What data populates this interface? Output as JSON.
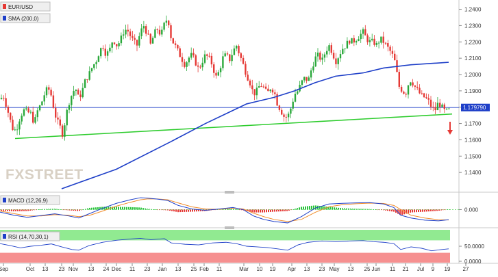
{
  "instrument": "EUR/USD",
  "watermark": "FXSTREET",
  "price_tag": "1.179790",
  "chart_data": [
    {
      "type": "candlestick",
      "pane": "price",
      "series": [
        {
          "name": "EUR/USD",
          "color": "#e53935"
        },
        {
          "name": "SMA (200,0)",
          "color": "#1e3fc8"
        }
      ],
      "ylim": [
        1.13,
        1.244
      ],
      "y_ticks": [
        "1.2400",
        "1.2300",
        "1.2200",
        "1.2100",
        "1.2000",
        "1.1900",
        "1.1800",
        "1.1700",
        "1.1600",
        "1.1500",
        "1.1400"
      ],
      "y_tick_values": [
        1.24,
        1.23,
        1.22,
        1.21,
        1.2,
        1.19,
        1.18,
        1.17,
        1.16,
        1.15,
        1.14
      ],
      "last_price": 1.17979,
      "price_anchors": [
        [
          0,
          1.185
        ],
        [
          5,
          1.187
        ],
        [
          10,
          1.18
        ],
        [
          15,
          1.172
        ],
        [
          20,
          1.165
        ],
        [
          25,
          1.168
        ],
        [
          30,
          1.175
        ],
        [
          35,
          1.178
        ],
        [
          40,
          1.177
        ],
        [
          45,
          1.176
        ],
        [
          50,
          1.17
        ],
        [
          55,
          1.178
        ],
        [
          60,
          1.182
        ],
        [
          65,
          1.188
        ],
        [
          70,
          1.192
        ],
        [
          75,
          1.187
        ],
        [
          80,
          1.176
        ],
        [
          85,
          1.17
        ],
        [
          90,
          1.166
        ],
        [
          92,
          1.162
        ],
        [
          95,
          1.172
        ],
        [
          100,
          1.182
        ],
        [
          105,
          1.188
        ],
        [
          110,
          1.192
        ],
        [
          115,
          1.185
        ],
        [
          120,
          1.19
        ],
        [
          125,
          1.197
        ],
        [
          130,
          1.2
        ],
        [
          135,
          1.205
        ],
        [
          140,
          1.208
        ],
        [
          145,
          1.214
        ],
        [
          150,
          1.218
        ],
        [
          155,
          1.212
        ],
        [
          160,
          1.215
        ],
        [
          165,
          1.222
        ],
        [
          170,
          1.218
        ],
        [
          175,
          1.22
        ],
        [
          180,
          1.226
        ],
        [
          185,
          1.228
        ],
        [
          190,
          1.224
        ],
        [
          195,
          1.22
        ],
        [
          200,
          1.218
        ],
        [
          205,
          1.226
        ],
        [
          210,
          1.23
        ],
        [
          215,
          1.225
        ],
        [
          220,
          1.218
        ],
        [
          225,
          1.225
        ],
        [
          230,
          1.228
        ],
        [
          235,
          1.224
        ],
        [
          240,
          1.231
        ],
        [
          245,
          1.235
        ],
        [
          250,
          1.222
        ],
        [
          255,
          1.218
        ],
        [
          260,
          1.214
        ],
        [
          265,
          1.21
        ],
        [
          270,
          1.206
        ],
        [
          275,
          1.21
        ],
        [
          280,
          1.212
        ],
        [
          285,
          1.208
        ],
        [
          290,
          1.203
        ],
        [
          295,
          1.208
        ],
        [
          300,
          1.212
        ],
        [
          305,
          1.21
        ],
        [
          310,
          1.206
        ],
        [
          315,
          1.198
        ],
        [
          320,
          1.202
        ],
        [
          325,
          1.21
        ],
        [
          330,
          1.212
        ],
        [
          335,
          1.209
        ],
        [
          340,
          1.214
        ],
        [
          345,
          1.218
        ],
        [
          350,
          1.212
        ],
        [
          355,
          1.206
        ],
        [
          360,
          1.2
        ],
        [
          365,
          1.195
        ],
        [
          370,
          1.188
        ],
        [
          375,
          1.19
        ],
        [
          380,
          1.194
        ],
        [
          385,
          1.192
        ],
        [
          390,
          1.188
        ],
        [
          395,
          1.192
        ],
        [
          400,
          1.19
        ],
        [
          405,
          1.182
        ],
        [
          410,
          1.178
        ],
        [
          415,
          1.174
        ],
        [
          420,
          1.174
        ],
        [
          425,
          1.18
        ],
        [
          430,
          1.188
        ],
        [
          435,
          1.19
        ],
        [
          440,
          1.195
        ],
        [
          445,
          1.198
        ],
        [
          450,
          1.196
        ],
        [
          455,
          1.204
        ],
        [
          460,
          1.21
        ],
        [
          465,
          1.212
        ],
        [
          470,
          1.208
        ],
        [
          475,
          1.214
        ],
        [
          480,
          1.218
        ],
        [
          485,
          1.214
        ],
        [
          490,
          1.208
        ],
        [
          495,
          1.212
        ],
        [
          500,
          1.216
        ],
        [
          505,
          1.218
        ],
        [
          510,
          1.221
        ],
        [
          515,
          1.22
        ],
        [
          520,
          1.222
        ],
        [
          525,
          1.224
        ],
        [
          530,
          1.226
        ],
        [
          535,
          1.222
        ],
        [
          540,
          1.22
        ],
        [
          545,
          1.22
        ],
        [
          550,
          1.218
        ],
        [
          555,
          1.222
        ],
        [
          560,
          1.22
        ],
        [
          565,
          1.217
        ],
        [
          570,
          1.214
        ],
        [
          575,
          1.21
        ],
        [
          578,
          1.205
        ],
        [
          582,
          1.193
        ],
        [
          588,
          1.19
        ],
        [
          592,
          1.188
        ],
        [
          596,
          1.194
        ],
        [
          600,
          1.197
        ],
        [
          605,
          1.193
        ],
        [
          610,
          1.19
        ],
        [
          615,
          1.187
        ],
        [
          620,
          1.186
        ],
        [
          625,
          1.184
        ],
        [
          630,
          1.18
        ],
        [
          635,
          1.178
        ],
        [
          640,
          1.183
        ],
        [
          645,
          1.18
        ],
        [
          650,
          1.177
        ],
        [
          655,
          1.178
        ]
      ],
      "sma_200": [
        [
          90,
          1.13
        ],
        [
          170,
          1.142
        ],
        [
          250,
          1.159
        ],
        [
          300,
          1.17
        ],
        [
          330,
          1.176
        ],
        [
          360,
          1.182
        ],
        [
          380,
          1.184
        ],
        [
          400,
          1.186
        ],
        [
          430,
          1.19
        ],
        [
          460,
          1.195
        ],
        [
          490,
          1.199
        ],
        [
          530,
          1.201
        ],
        [
          560,
          1.204
        ],
        [
          600,
          1.206
        ],
        [
          655,
          1.2075
        ]
      ],
      "trendline": [
        [
          22,
          1.1608
        ],
        [
          660,
          1.1758
        ]
      ],
      "down_arrow": true
    },
    {
      "type": "line",
      "pane": "macd",
      "series": [
        {
          "name": "MACD (12,26,9)",
          "color": "#1e3fc8"
        },
        {
          "name": "Signal",
          "color": "#f08c2a"
        },
        {
          "name": "Histogram",
          "color_up": "#29c33c",
          "color_down": "#e53935"
        }
      ],
      "ylim": [
        -0.011,
        0.01
      ],
      "y_ticks": [
        "0.000"
      ],
      "macd_points": [
        [
          0,
          -0.0018
        ],
        [
          20,
          -0.004
        ],
        [
          40,
          -0.0055
        ],
        [
          60,
          -0.0042
        ],
        [
          80,
          -0.003
        ],
        [
          100,
          -0.0045
        ],
        [
          115,
          -0.006
        ],
        [
          130,
          -0.003
        ],
        [
          150,
          0.001
        ],
        [
          170,
          0.0045
        ],
        [
          190,
          0.007
        ],
        [
          205,
          0.0085
        ],
        [
          215,
          0.0082
        ],
        [
          230,
          0.0075
        ],
        [
          245,
          0.0065
        ],
        [
          260,
          0.003
        ],
        [
          280,
          0.0005
        ],
        [
          300,
          -0.0005
        ],
        [
          320,
          0.0005
        ],
        [
          340,
          0.0015
        ],
        [
          355,
          0.0
        ],
        [
          370,
          -0.0045
        ],
        [
          385,
          -0.007
        ],
        [
          400,
          -0.0085
        ],
        [
          420,
          -0.0095
        ],
        [
          440,
          -0.005
        ],
        [
          460,
          0.001
        ],
        [
          480,
          0.004
        ],
        [
          500,
          0.0045
        ],
        [
          520,
          0.0048
        ],
        [
          540,
          0.005
        ],
        [
          560,
          0.004
        ],
        [
          575,
          0.0015
        ],
        [
          585,
          -0.004
        ],
        [
          600,
          -0.006
        ],
        [
          620,
          -0.0075
        ],
        [
          640,
          -0.008
        ],
        [
          655,
          -0.0072
        ]
      ],
      "signal_points": [
        [
          0,
          -0.001
        ],
        [
          20,
          -0.0028
        ],
        [
          40,
          -0.0045
        ],
        [
          60,
          -0.0045
        ],
        [
          80,
          -0.0036
        ],
        [
          100,
          -0.004
        ],
        [
          115,
          -0.005
        ],
        [
          130,
          -0.0042
        ],
        [
          150,
          -0.001
        ],
        [
          170,
          0.0025
        ],
        [
          190,
          0.0052
        ],
        [
          205,
          0.007
        ],
        [
          215,
          0.0076
        ],
        [
          230,
          0.0076
        ],
        [
          245,
          0.007
        ],
        [
          260,
          0.0048
        ],
        [
          280,
          0.002
        ],
        [
          300,
          0.0005
        ],
        [
          320,
          0.0002
        ],
        [
          340,
          0.001
        ],
        [
          355,
          0.0005
        ],
        [
          370,
          -0.0025
        ],
        [
          385,
          -0.005
        ],
        [
          400,
          -0.007
        ],
        [
          420,
          -0.0085
        ],
        [
          440,
          -0.007
        ],
        [
          460,
          -0.002
        ],
        [
          480,
          0.002
        ],
        [
          500,
          0.0035
        ],
        [
          520,
          0.0042
        ],
        [
          540,
          0.0046
        ],
        [
          560,
          0.0044
        ],
        [
          575,
          0.003
        ],
        [
          585,
          0.0
        ],
        [
          600,
          -0.004
        ],
        [
          620,
          -0.006
        ],
        [
          640,
          -0.0072
        ],
        [
          655,
          -0.0074
        ]
      ]
    },
    {
      "type": "line",
      "pane": "rsi",
      "series": [
        {
          "name": "RSI (14,70,30,1)",
          "color": "#1e3fc8"
        }
      ],
      "ylim": [
        0,
        100
      ],
      "y_ticks": [
        "50.0000",
        "0.0000"
      ],
      "y_tick_values": [
        50,
        0
      ],
      "rsi_points": [
        [
          0,
          58
        ],
        [
          15,
          52
        ],
        [
          30,
          45
        ],
        [
          45,
          50
        ],
        [
          60,
          53
        ],
        [
          75,
          57
        ],
        [
          90,
          48
        ],
        [
          105,
          40
        ],
        [
          115,
          38
        ],
        [
          130,
          52
        ],
        [
          150,
          62
        ],
        [
          170,
          68
        ],
        [
          190,
          72
        ],
        [
          205,
          74
        ],
        [
          220,
          70
        ],
        [
          240,
          73
        ],
        [
          250,
          60
        ],
        [
          270,
          56
        ],
        [
          290,
          54
        ],
        [
          310,
          60
        ],
        [
          330,
          62
        ],
        [
          345,
          58
        ],
        [
          360,
          50
        ],
        [
          375,
          48
        ],
        [
          390,
          46
        ],
        [
          405,
          42
        ],
        [
          420,
          38
        ],
        [
          435,
          54
        ],
        [
          450,
          62
        ],
        [
          470,
          66
        ],
        [
          490,
          64
        ],
        [
          510,
          66
        ],
        [
          530,
          67
        ],
        [
          545,
          64
        ],
        [
          560,
          62
        ],
        [
          575,
          58
        ],
        [
          585,
          40
        ],
        [
          600,
          48
        ],
        [
          615,
          44
        ],
        [
          630,
          36
        ],
        [
          645,
          40
        ],
        [
          655,
          42
        ]
      ]
    }
  ],
  "x_axis": {
    "labels": [
      "Sep",
      "Oct",
      "13",
      "23",
      "Nov",
      "13",
      "24",
      "Dec",
      "11",
      "23",
      "Jan",
      "13",
      "25",
      "Feb",
      "11",
      "Mar",
      "10",
      "19",
      "Apr",
      "13",
      "23",
      "May",
      "13",
      "25",
      "Jun",
      "11",
      "21",
      "Jul",
      "9",
      "19",
      "27"
    ],
    "positions": [
      5,
      44,
      66,
      90,
      107,
      133,
      155,
      170,
      193,
      215,
      237,
      260,
      283,
      298,
      320,
      356,
      379,
      398,
      426,
      448,
      470,
      488,
      512,
      536,
      549,
      573,
      592,
      614,
      632,
      653,
      680
    ]
  }
}
